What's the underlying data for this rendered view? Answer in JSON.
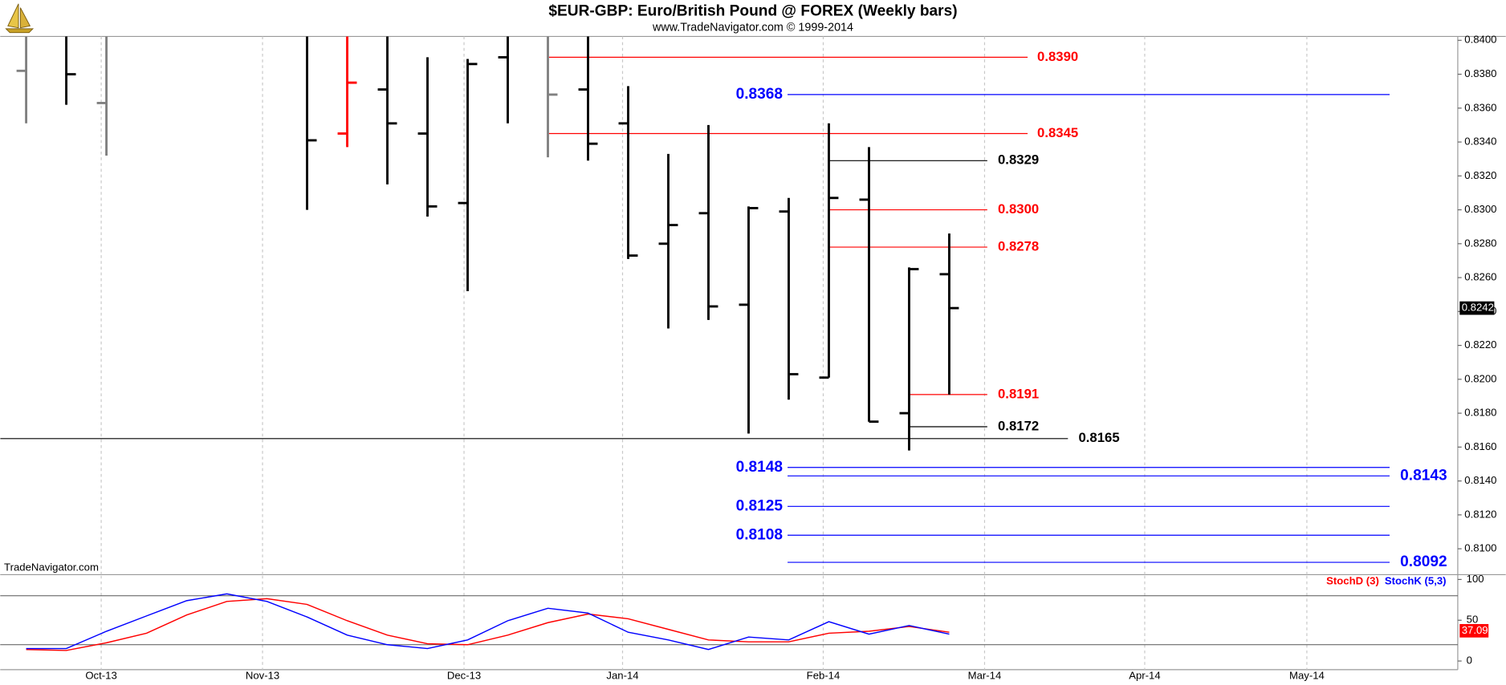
{
  "chart_data": [
    {
      "type": "ohlc",
      "title": "$EUR-GBP:  Euro/British Pound @ FOREX  (Weekly bars)",
      "subtitle": "www.TradeNavigator.com © 1999-2014",
      "watermark": "TradeNavigator.com",
      "categories": [
        null,
        null,
        null,
        null,
        null,
        null,
        null,
        null,
        null,
        null,
        null,
        null,
        null,
        null,
        null,
        null,
        null,
        null,
        null,
        null,
        null,
        null,
        null,
        null
      ],
      "open": [
        0.8382,
        null,
        0.8363,
        null,
        null,
        null,
        null,
        null,
        0.8345,
        0.8371,
        0.8345,
        0.8304,
        0.839,
        null,
        0.8371,
        0.8351,
        0.828,
        0.8298,
        0.8244,
        0.8299,
        0.8201,
        0.8306,
        0.818,
        0.8262
      ],
      "high": [
        0.8405,
        0.8405,
        0.8405,
        null,
        null,
        null,
        null,
        0.8405,
        0.8405,
        0.8405,
        0.839,
        0.8389,
        0.8405,
        0.8405,
        0.8405,
        0.8373,
        0.8333,
        0.835,
        0.8302,
        0.8307,
        0.8351,
        0.8337,
        0.8266,
        0.8286
      ],
      "low": [
        0.8351,
        0.8362,
        0.8332,
        null,
        null,
        null,
        null,
        0.83,
        0.8337,
        0.8315,
        0.8296,
        0.8252,
        0.8351,
        0.8331,
        0.8329,
        0.8271,
        0.823,
        0.8235,
        0.8168,
        0.8188,
        0.8201,
        0.8175,
        0.8158,
        0.8191
      ],
      "close": [
        null,
        0.838,
        null,
        null,
        null,
        null,
        null,
        0.8341,
        0.8375,
        0.8351,
        0.8302,
        0.8386,
        null,
        0.8368,
        0.8339,
        0.8273,
        0.8291,
        0.8243,
        0.8301,
        0.8203,
        0.8307,
        0.8175,
        0.8265,
        0.8242
      ],
      "bar_colors": [
        "#808080",
        "#000000",
        "#808080",
        "#000000",
        "#000000",
        "#000000",
        "#000000",
        "#000000",
        "#ff0000",
        "#000000",
        "#000000",
        "#000000",
        "#000000",
        "#808080",
        "#000000",
        "#000000",
        "#000000",
        "#000000",
        "#000000",
        "#000000",
        "#000000",
        "#000000",
        "#000000",
        "#000000"
      ],
      "xlim": [
        -0.646,
        35.67
      ],
      "xticks": [
        {
          "value": 1.87,
          "label": "Oct-13"
        },
        {
          "value": 5.89,
          "label": "Nov-13"
        },
        {
          "value": 10.91,
          "label": "Dec-13"
        },
        {
          "value": 14.86,
          "label": "Jan-14"
        },
        {
          "value": 19.86,
          "label": "Feb-14"
        },
        {
          "value": 23.88,
          "label": "Mar-14"
        },
        {
          "value": 27.87,
          "label": "Apr-14"
        },
        {
          "value": 31.91,
          "label": "May-14"
        }
      ],
      "ylim": [
        0.8085,
        0.8402
      ],
      "yticks": [
        {
          "value": 0.81,
          "label": "0.8100"
        },
        {
          "value": 0.812,
          "label": "0.8120"
        },
        {
          "value": 0.814,
          "label": "0.8140"
        },
        {
          "value": 0.816,
          "label": "0.8160"
        },
        {
          "value": 0.818,
          "label": "0.8180"
        },
        {
          "value": 0.82,
          "label": "0.8200"
        },
        {
          "value": 0.822,
          "label": "0.8220"
        },
        {
          "value": 0.824,
          "label": "0.8240"
        },
        {
          "value": 0.826,
          "label": "0.8260"
        },
        {
          "value": 0.828,
          "label": "0.8280"
        },
        {
          "value": 0.83,
          "label": "0.8300"
        },
        {
          "value": 0.832,
          "label": "0.8320"
        },
        {
          "value": 0.834,
          "label": "0.8340"
        },
        {
          "value": 0.836,
          "label": "0.8360"
        },
        {
          "value": 0.838,
          "label": "0.8380"
        },
        {
          "value": 0.84,
          "label": "0.8400"
        }
      ],
      "grid": true,
      "levels": [
        {
          "value": 0.839,
          "label": "0.8390",
          "color": "#ff0000"
        },
        {
          "value": 0.8368,
          "color": "#0000ff"
        },
        {
          "value": 0.8345,
          "color": "#ff0000"
        },
        {
          "value": 0.8329,
          "color": "#000000"
        },
        {
          "value": 0.83,
          "label": "0.8300",
          "color": "#ff0000"
        },
        {
          "value": 0.8278,
          "color": "#ff0000"
        },
        {
          "value": 0.8191,
          "color": "#ff0000"
        },
        {
          "value": 0.8172,
          "color": "#000000"
        },
        {
          "value": 0.8165,
          "color": "#000000"
        },
        {
          "value": 0.8148,
          "color": "#0000ff"
        },
        {
          "value": 0.8143,
          "color": "#0000ff"
        },
        {
          "value": 0.8125,
          "color": "#0000ff"
        },
        {
          "value": 0.8108,
          "color": "#0000ff"
        },
        {
          "value": 0.8092,
          "color": "#0000ff"
        }
      ],
      "last_price": 0.8242
    },
    {
      "type": "line",
      "ylim": [
        -10.6,
        104.7
      ],
      "yticks": [
        0,
        50,
        100
      ],
      "hlines": [
        20,
        80
      ],
      "series": [
        {
          "name": "StochD (3)",
          "color": "#ff0000",
          "values": [
            14.1,
            12.9,
            22.4,
            34.1,
            56.5,
            73,
            76.5,
            69.4,
            49.4,
            31.8,
            21.2,
            20,
            31.8,
            47.1,
            57.6,
            51.8,
            38.8,
            25.9,
            23.5,
            23.5,
            34.1,
            36.5,
            42.4,
            35.3
          ]
        },
        {
          "name": "StochK (5,3)",
          "color": "#0000ff",
          "values": [
            15.3,
            15.3,
            36.5,
            55.3,
            74,
            82.4,
            73,
            54,
            31.8,
            20,
            15.3,
            25.9,
            49.4,
            64.7,
            58.8,
            35.3,
            25.9,
            14.1,
            29.4,
            25.9,
            48.2,
            32.9,
            43.5,
            32.9
          ]
        }
      ],
      "last_value": 37.09
    }
  ]
}
